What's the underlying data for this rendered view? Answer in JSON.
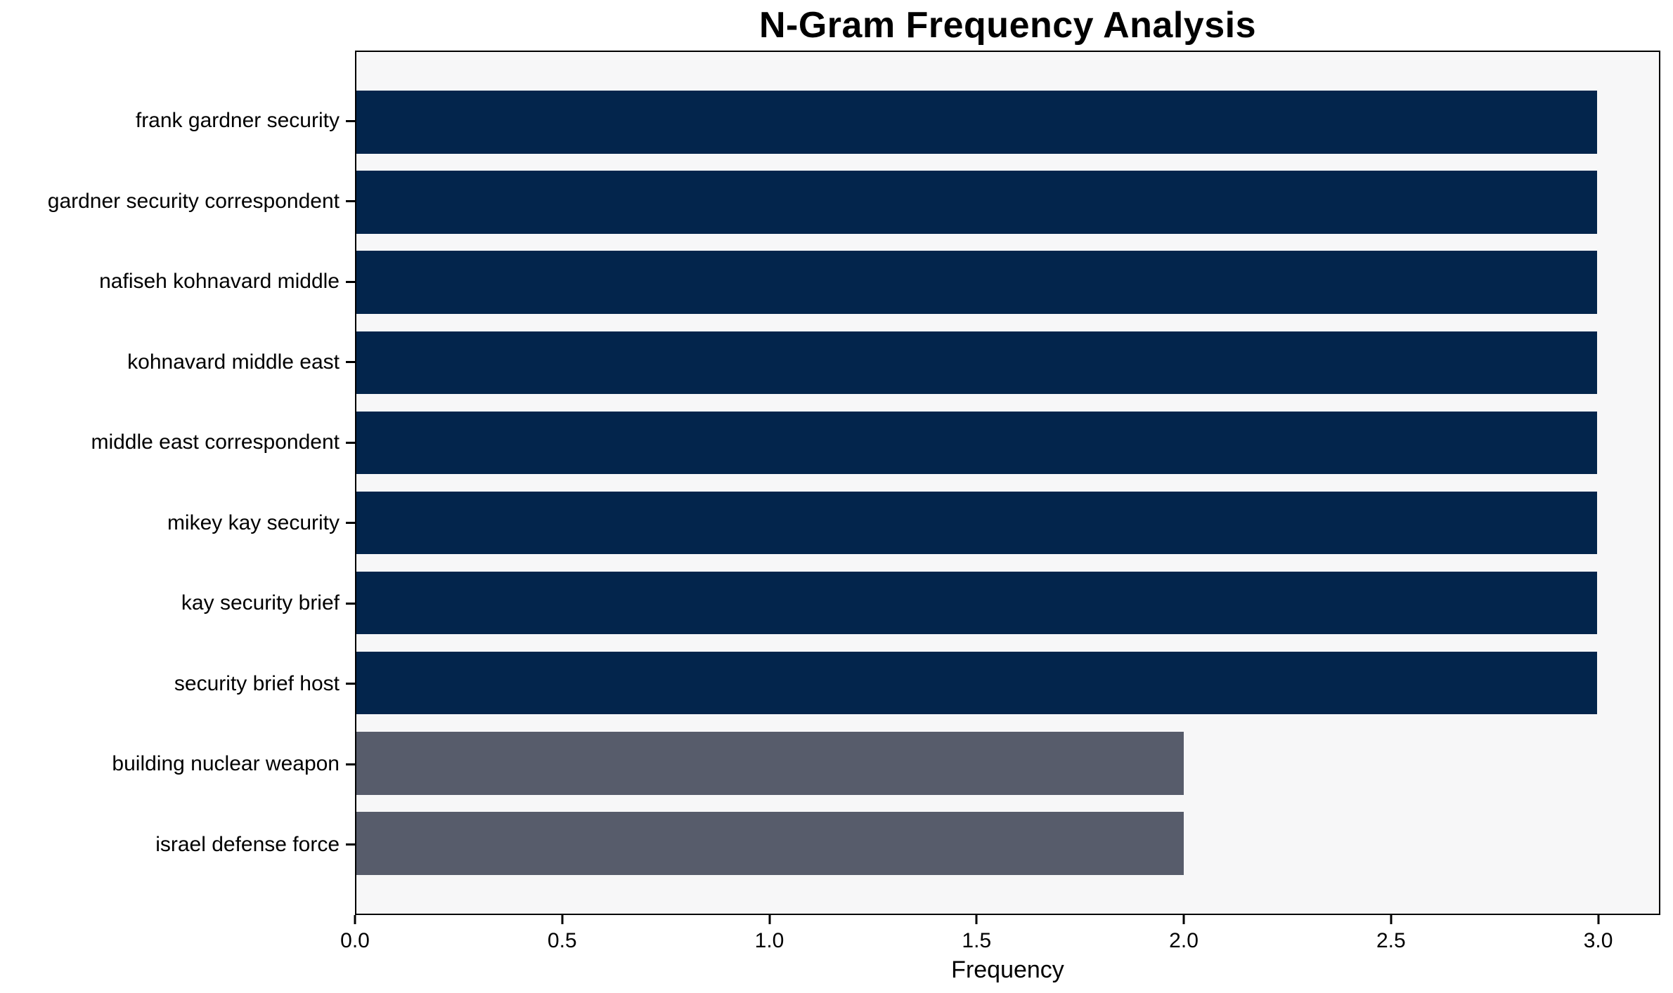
{
  "chart_data": {
    "type": "bar",
    "orientation": "horizontal",
    "title": "N-Gram Frequency Analysis",
    "xlabel": "Frequency",
    "ylabel": "",
    "categories": [
      "frank gardner security",
      "gardner security correspondent",
      "nafiseh kohnavard middle",
      "kohnavard middle east",
      "middle east correspondent",
      "mikey kay security",
      "kay security brief",
      "security brief host",
      "building nuclear weapon",
      "israel defense force"
    ],
    "values": [
      3,
      3,
      3,
      3,
      3,
      3,
      3,
      3,
      2,
      2
    ],
    "bar_colors": [
      "#03254C",
      "#03254C",
      "#03254C",
      "#03254C",
      "#03254C",
      "#03254C",
      "#03254C",
      "#03254C",
      "#575C6B",
      "#575C6B"
    ],
    "x_tick_labels": [
      "0.0",
      "0.5",
      "1.0",
      "1.5",
      "2.0",
      "2.5",
      "3.0"
    ],
    "x_tick_values": [
      0,
      0.5,
      1,
      1.5,
      2,
      2.5,
      3
    ],
    "xlim": [
      0,
      3.15
    ],
    "grid": false,
    "legend_position": "none",
    "colors": {
      "high_frequency_bar": "#03254C",
      "low_frequency_bar": "#575C6B",
      "plot_background": "#F7F7F8",
      "figure_background": "#FFFFFF",
      "frame": "#000000",
      "text": "#000000"
    }
  }
}
